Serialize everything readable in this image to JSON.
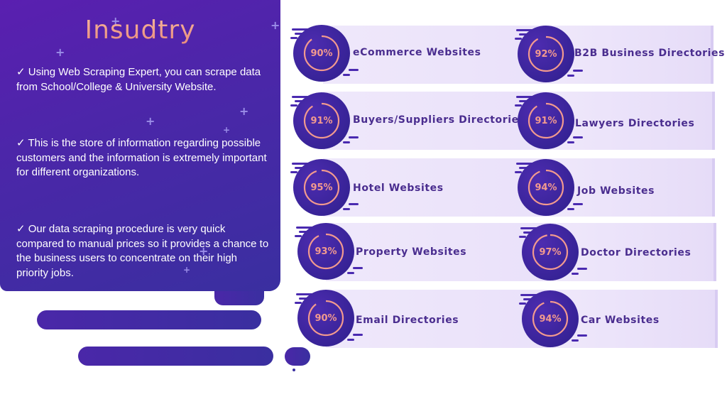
{
  "heading": "Insudtry",
  "bullets": [
    "✓ Using Web Scraping Expert, you can scrape data from School/College & University Website.",
    "✓ This is the store of information regarding possible customers and the information is extremely important for different organizations.",
    "✓ Our data scraping procedure is very quick compared to manual prices so it provides a chance to the business users to concentrate on their high priority jobs."
  ],
  "cards": [
    {
      "percent": "90%",
      "value": 0.9,
      "label": "eCommerce Websites"
    },
    {
      "percent": "92%",
      "value": 0.92,
      "label": "B2B Business Directories"
    },
    {
      "percent": "91%",
      "value": 0.91,
      "label": "Buyers/Suppliers Directories"
    },
    {
      "percent": "91%",
      "value": 0.91,
      "label": "Lawyers Directories"
    },
    {
      "percent": "95%",
      "value": 0.95,
      "label": "Hotel Websites"
    },
    {
      "percent": "94%",
      "value": 0.94,
      "label": "Job Websites"
    },
    {
      "percent": "93%",
      "value": 0.93,
      "label": "Property Websites"
    },
    {
      "percent": "97%",
      "value": 0.97,
      "label": "Doctor Directories"
    },
    {
      "percent": "90%",
      "value": 0.9,
      "label": "Email Directories"
    },
    {
      "percent": "94%",
      "value": 0.94,
      "label": "Car Websites"
    }
  ],
  "colors": {
    "panel": "#4a27a8",
    "ring_arc": "#f29a8e",
    "label": "#4a2d8f",
    "band": "#efe8fb"
  }
}
